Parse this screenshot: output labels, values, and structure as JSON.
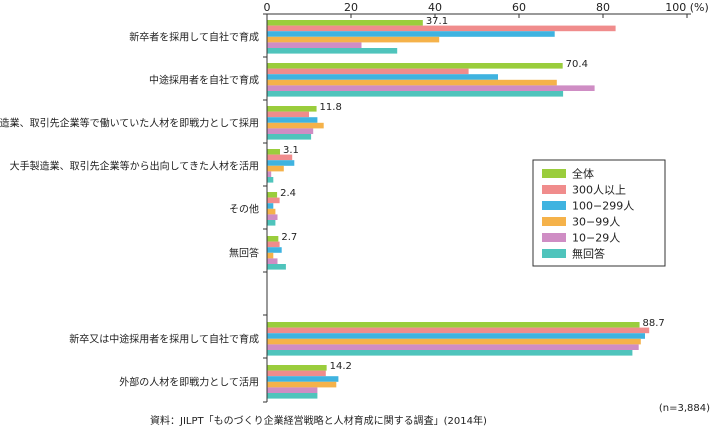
{
  "chart_data": {
    "type": "bar",
    "orientation": "horizontal",
    "categories": [
      "新卒者を採用して自社で育成",
      "中途採用者を自社で育成",
      "大手製造業、取引先企業等で働いていた人材を即戦力として採用",
      "大手製造業、取引先企業等から出向してきた人材を活用",
      "その他",
      "無回答",
      "新卒又は中途採用者を採用して自社で育成",
      "外部の人材を即戦力として活用"
    ],
    "series": [
      {
        "name": "全体",
        "color": "#9acd3c",
        "values": [
          37.1,
          70.4,
          11.8,
          3.1,
          2.4,
          2.7,
          88.7,
          14.2
        ]
      },
      {
        "name": "300人以上",
        "color": "#f08c8c",
        "values": [
          83.0,
          48.0,
          10.0,
          6.0,
          3.0,
          3.0,
          91.0,
          14.0
        ]
      },
      {
        "name": "100−299人",
        "color": "#3fb3e0",
        "values": [
          68.5,
          55.0,
          12.0,
          6.5,
          1.5,
          3.5,
          90.0,
          17.0
        ]
      },
      {
        "name": "30−99人",
        "color": "#f5b24a",
        "values": [
          41.0,
          69.0,
          13.5,
          4.0,
          2.0,
          1.5,
          89.0,
          16.5
        ]
      },
      {
        "name": "10−29人",
        "color": "#cf8dc4",
        "values": [
          22.5,
          78.0,
          11.0,
          1.0,
          2.5,
          2.5,
          88.5,
          12.0
        ]
      },
      {
        "name": "無回答",
        "color": "#4fc4bc",
        "values": [
          31.0,
          70.5,
          10.5,
          1.5,
          2.0,
          4.5,
          87.0,
          12.0
        ]
      }
    ],
    "data_labels": [
      "37.1",
      "70.4",
      "11.8",
      "3.1",
      "2.4",
      "2.7",
      "88.7",
      "14.2"
    ],
    "x_ticks": [
      "0",
      "20",
      "40",
      "60",
      "80",
      "100 (%)"
    ],
    "xlim": [
      0,
      100
    ],
    "legend_position": "right-center",
    "grid": false
  },
  "note": "(n=3,884)",
  "source": "資料：JILPT「ものづくり企業経営戦略と人材育成に関する調査」(2014年)"
}
